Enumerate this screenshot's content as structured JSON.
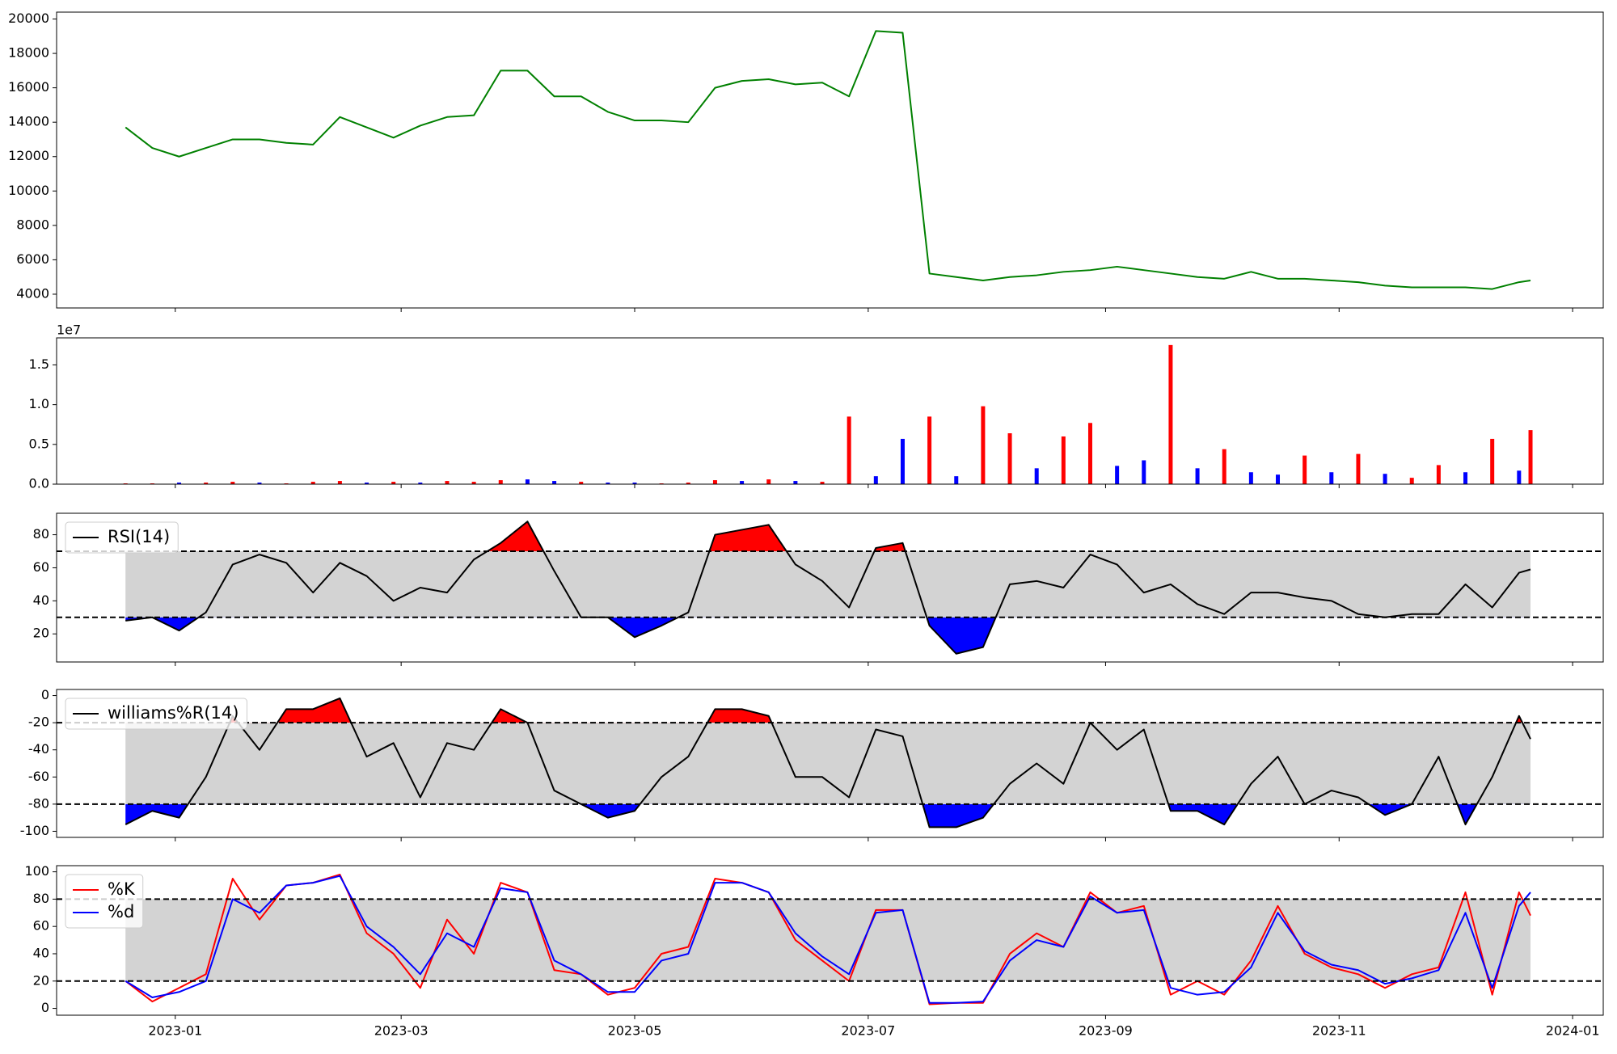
{
  "chart_data": [
    {
      "type": "line",
      "xlim": [
        19327,
        19731
      ],
      "x": [
        19345,
        19352,
        19359,
        19366,
        19373,
        19380,
        19387,
        19394,
        19401,
        19408,
        19415,
        19422,
        19429,
        19436,
        19443,
        19450,
        19457,
        19464,
        19471,
        19478,
        19485,
        19492,
        19499,
        19506,
        19513,
        19520,
        19527,
        19534,
        19541,
        19548,
        19555,
        19562,
        19569,
        19576,
        19583,
        19590,
        19597,
        19604,
        19611,
        19618,
        19625,
        19632,
        19639,
        19646,
        19653,
        19660,
        19667,
        19674,
        19681,
        19688,
        19695,
        19702,
        19709,
        19712
      ],
      "series": [
        {
          "color": "green",
          "values": [
            13700,
            12500,
            12000,
            12500,
            13000,
            13000,
            12800,
            12700,
            14300,
            13700,
            13100,
            13800,
            14300,
            14400,
            17000,
            17000,
            15500,
            15500,
            14600,
            14100,
            14100,
            14000,
            16000,
            16400,
            16500,
            16200,
            16300,
            15500,
            19300,
            19200,
            5200,
            5000,
            4800,
            5000,
            5100,
            5300,
            5400,
            5600,
            5400,
            5200,
            5000,
            4900,
            5300,
            4900,
            4900,
            4800,
            4700,
            4500,
            4400,
            4400,
            4400,
            4300,
            4700,
            4800
          ]
        }
      ],
      "ylim": [
        3200,
        20400
      ],
      "yticks": [
        4000,
        6000,
        8000,
        10000,
        12000,
        14000,
        16000,
        18000,
        20000
      ]
    },
    {
      "type": "bar",
      "xlim": [
        19327,
        19731
      ],
      "offset_label": "1e7",
      "x": [
        19345,
        19352,
        19359,
        19366,
        19373,
        19380,
        19387,
        19394,
        19401,
        19408,
        19415,
        19422,
        19429,
        19436,
        19443,
        19450,
        19457,
        19464,
        19471,
        19478,
        19485,
        19492,
        19499,
        19506,
        19513,
        19520,
        19527,
        19534,
        19541,
        19548,
        19555,
        19562,
        19569,
        19576,
        19583,
        19590,
        19597,
        19604,
        19611,
        19618,
        19625,
        19632,
        19639,
        19646,
        19653,
        19660,
        19667,
        19674,
        19681,
        19688,
        19695,
        19702,
        19709,
        19712
      ],
      "values": [
        0.01,
        0.01,
        0.02,
        0.02,
        0.03,
        0.02,
        0.01,
        0.03,
        0.04,
        0.02,
        0.03,
        0.02,
        0.04,
        0.03,
        0.05,
        0.06,
        0.04,
        0.03,
        0.02,
        0.02,
        0.01,
        0.02,
        0.05,
        0.04,
        0.06,
        0.04,
        0.03,
        0.85,
        0.1,
        0.57,
        0.85,
        0.1,
        0.98,
        0.64,
        0.2,
        0.6,
        0.77,
        0.23,
        0.3,
        1.75,
        0.2,
        0.44,
        0.15,
        0.12,
        0.36,
        0.15,
        0.38,
        0.13,
        0.08,
        0.24,
        0.15,
        0.57,
        0.17,
        0.68
      ],
      "colors": [
        "red",
        "red",
        "blue",
        "red",
        "red",
        "blue",
        "red",
        "red",
        "red",
        "blue",
        "red",
        "blue",
        "red",
        "red",
        "red",
        "blue",
        "blue",
        "red",
        "blue",
        "blue",
        "red",
        "red",
        "red",
        "blue",
        "red",
        "blue",
        "red",
        "red",
        "blue",
        "blue",
        "red",
        "blue",
        "red",
        "red",
        "blue",
        "red",
        "red",
        "blue",
        "blue",
        "red",
        "blue",
        "red",
        "blue",
        "blue",
        "red",
        "blue",
        "red",
        "blue",
        "red",
        "red",
        "blue",
        "red",
        "blue",
        "red"
      ],
      "ylim": [
        0,
        1.84
      ],
      "yticks": [
        {
          "value": 0,
          "label": "0.0"
        },
        0.5,
        {
          "value": 1,
          "label": "1.0"
        },
        1.5
      ]
    },
    {
      "type": "line",
      "xlim": [
        19327,
        19731
      ],
      "legend": "upper left",
      "x": [
        19345,
        19352,
        19359,
        19366,
        19373,
        19380,
        19387,
        19394,
        19401,
        19408,
        19415,
        19422,
        19429,
        19436,
        19443,
        19450,
        19457,
        19464,
        19471,
        19478,
        19485,
        19492,
        19499,
        19506,
        19513,
        19520,
        19527,
        19534,
        19541,
        19548,
        19555,
        19562,
        19569,
        19576,
        19583,
        19590,
        19597,
        19604,
        19611,
        19618,
        19625,
        19632,
        19639,
        19646,
        19653,
        19660,
        19667,
        19674,
        19681,
        19688,
        19695,
        19702,
        19709,
        19712
      ],
      "series": [
        {
          "name": "RSI(14)",
          "color": "black",
          "values": [
            28,
            30,
            22,
            33,
            62,
            68,
            63,
            45,
            63,
            55,
            40,
            48,
            45,
            65,
            75,
            88,
            58,
            30,
            30,
            18,
            25,
            33,
            80,
            83,
            86,
            62,
            52,
            36,
            72,
            75,
            25,
            8,
            12,
            50,
            52,
            48,
            68,
            62,
            45,
            50,
            38,
            32,
            45,
            45,
            42,
            40,
            32,
            30,
            32,
            32,
            50,
            36,
            57,
            59
          ]
        }
      ],
      "levels": [
        70,
        30
      ],
      "band_color": "#d3d3d3",
      "upper_fill": "red",
      "lower_fill": "blue",
      "ylim": [
        3,
        93
      ],
      "yticks": [
        20,
        40,
        60,
        80
      ]
    },
    {
      "type": "line",
      "xlim": [
        19327,
        19731
      ],
      "legend": "upper left",
      "x": [
        19345,
        19352,
        19359,
        19366,
        19373,
        19380,
        19387,
        19394,
        19401,
        19408,
        19415,
        19422,
        19429,
        19436,
        19443,
        19450,
        19457,
        19464,
        19471,
        19478,
        19485,
        19492,
        19499,
        19506,
        19513,
        19520,
        19527,
        19534,
        19541,
        19548,
        19555,
        19562,
        19569,
        19576,
        19583,
        19590,
        19597,
        19604,
        19611,
        19618,
        19625,
        19632,
        19639,
        19646,
        19653,
        19660,
        19667,
        19674,
        19681,
        19688,
        19695,
        19702,
        19709,
        19712
      ],
      "series": [
        {
          "name": "williams%R(14)",
          "color": "black",
          "values": [
            -95,
            -85,
            -90,
            -60,
            -15,
            -40,
            -10,
            -10,
            -2,
            -45,
            -35,
            -75,
            -35,
            -40,
            -10,
            -20,
            -70,
            -80,
            -90,
            -85,
            -60,
            -45,
            -10,
            -10,
            -15,
            -60,
            -60,
            -75,
            -25,
            -30,
            -97,
            -97,
            -90,
            -65,
            -50,
            -65,
            -20,
            -40,
            -25,
            -85,
            -85,
            -95,
            -65,
            -45,
            -80,
            -70,
            -75,
            -88,
            -80,
            -45,
            -95,
            -60,
            -15,
            -32
          ]
        }
      ],
      "levels": [
        -20,
        -80
      ],
      "band_color": "#d3d3d3",
      "upper_fill": "red",
      "lower_fill": "blue",
      "ylim": [
        -104.5,
        4.5
      ],
      "yticks": [
        -100,
        -80,
        -60,
        -40,
        -20,
        0
      ]
    },
    {
      "type": "line",
      "xlim": [
        19327,
        19731
      ],
      "legend": "upper left",
      "x": [
        19345,
        19352,
        19359,
        19366,
        19373,
        19380,
        19387,
        19394,
        19401,
        19408,
        19415,
        19422,
        19429,
        19436,
        19443,
        19450,
        19457,
        19464,
        19471,
        19478,
        19485,
        19492,
        19499,
        19506,
        19513,
        19520,
        19527,
        19534,
        19541,
        19548,
        19555,
        19562,
        19569,
        19576,
        19583,
        19590,
        19597,
        19604,
        19611,
        19618,
        19625,
        19632,
        19639,
        19646,
        19653,
        19660,
        19667,
        19674,
        19681,
        19688,
        19695,
        19702,
        19709,
        19712
      ],
      "series": [
        {
          "name": "%K",
          "color": "red",
          "values": [
            20,
            5,
            15,
            25,
            95,
            65,
            90,
            92,
            98,
            55,
            40,
            15,
            65,
            40,
            92,
            85,
            28,
            25,
            10,
            15,
            40,
            45,
            95,
            92,
            85,
            50,
            35,
            20,
            72,
            72,
            3,
            4,
            4,
            40,
            55,
            45,
            85,
            70,
            75,
            10,
            20,
            10,
            35,
            75,
            40,
            30,
            25,
            15,
            25,
            30,
            85,
            10,
            85,
            68
          ]
        },
        {
          "name": "%d",
          "color": "blue",
          "values": [
            20,
            8,
            12,
            20,
            80,
            70,
            90,
            92,
            97,
            60,
            45,
            25,
            55,
            45,
            88,
            85,
            35,
            25,
            12,
            12,
            35,
            40,
            92,
            92,
            85,
            55,
            38,
            25,
            70,
            72,
            4,
            4,
            5,
            35,
            50,
            45,
            82,
            70,
            72,
            15,
            10,
            12,
            30,
            70,
            42,
            32,
            28,
            18,
            22,
            28,
            70,
            15,
            75,
            85
          ]
        }
      ],
      "levels": [
        80,
        20
      ],
      "band_color": "#d3d3d3",
      "ylim": [
        -5,
        104.5
      ],
      "yticks": [
        0,
        20,
        40,
        60,
        80,
        100
      ],
      "xticks": [
        {
          "value": 19358,
          "label": "2023-01"
        },
        {
          "value": 19417,
          "label": "2023-03"
        },
        {
          "value": 19478,
          "label": "2023-05"
        },
        {
          "value": 19539,
          "label": "2023-07"
        },
        {
          "value": 19601,
          "label": "2023-09"
        },
        {
          "value": 19662,
          "label": "2023-11"
        },
        {
          "value": 19723,
          "label": "2024-01"
        }
      ]
    }
  ]
}
